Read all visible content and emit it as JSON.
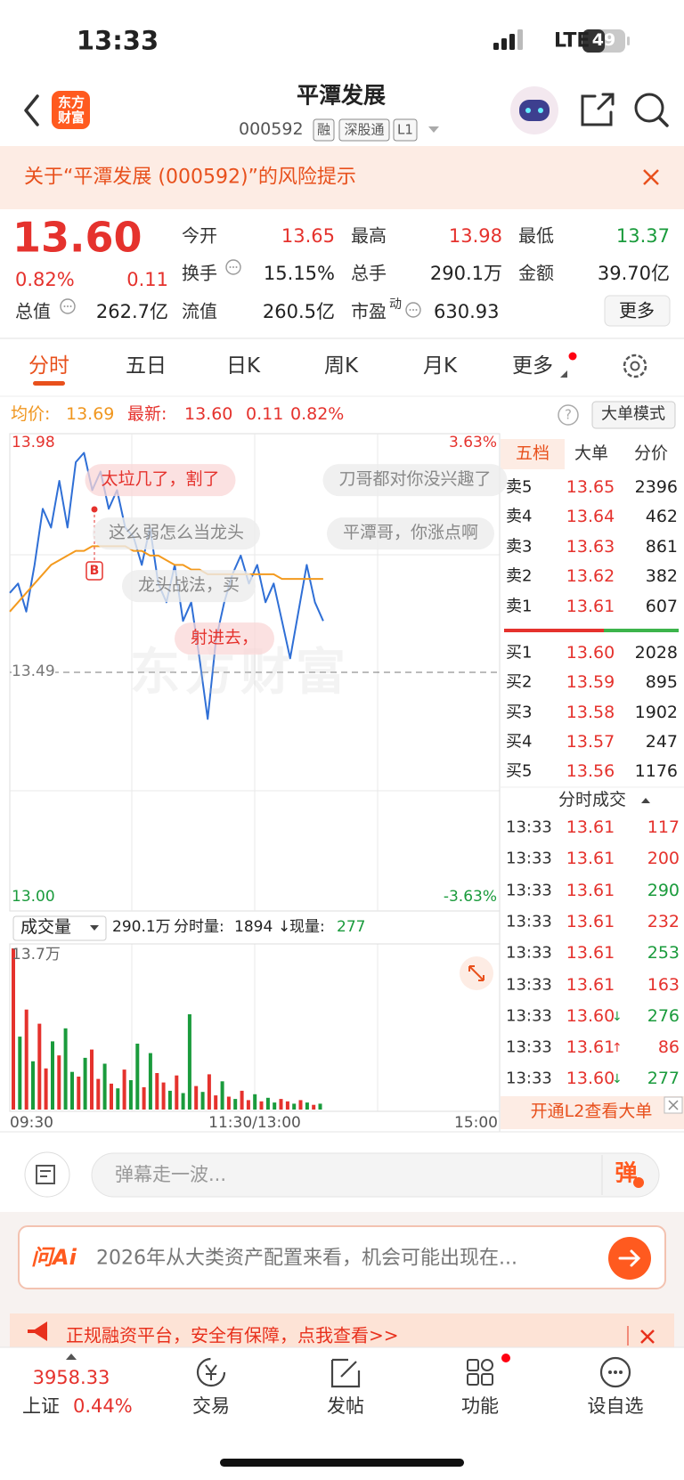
{
  "status_bar": {
    "time": "13:33",
    "network": "LTE",
    "battery": "49"
  },
  "header": {
    "logo": "东方财富",
    "name": "平潭发展",
    "code": "000592",
    "tags": [
      "融",
      "深股通",
      "L1"
    ]
  },
  "risk_notice": "关于“平潭发展 (000592)”的风险提示",
  "quote": {
    "price": "13.60",
    "change_pct": "0.82%",
    "change": "0.11",
    "fields": [
      {
        "label": "今开",
        "value": "13.65",
        "color": "#e5322d"
      },
      {
        "label": "最高",
        "value": "13.98",
        "color": "#e5322d"
      },
      {
        "label": "最低",
        "value": "13.37",
        "color": "#1a9b3c"
      },
      {
        "label": "换手",
        "value": "15.15%"
      },
      {
        "label": "总手",
        "value": "290.1万"
      },
      {
        "label": "金额",
        "value": "39.70亿"
      },
      {
        "label": "总值",
        "value": "262.7亿"
      },
      {
        "label": "流值",
        "value": "260.5亿"
      },
      {
        "label": "市盈",
        "sup": "动",
        "value": "630.93"
      }
    ],
    "more": "更多"
  },
  "tabs": [
    "分时",
    "五日",
    "日K",
    "周K",
    "月K",
    "更多"
  ],
  "info_bar": {
    "avg_label": "均价:",
    "avg": "13.69",
    "latest_label": "最新:",
    "latest": "13.60",
    "change": "0.11",
    "change_pct": "0.82%",
    "help": "?",
    "mode": "大单模式"
  },
  "chart_data": [
    {
      "type": "line",
      "ylim": [
        13.0,
        13.98
      ],
      "yticks": [
        {
          "value": 13.98,
          "label": "13.98"
        },
        {
          "value": 13.49,
          "label": "13.49"
        },
        {
          "value": 13,
          "label": "13.00"
        }
      ],
      "y2lim": [
        -3.63,
        3.63
      ],
      "y2ticks": [
        {
          "value": 3.63,
          "label": "3.63%"
        },
        {
          "value": -3.63,
          "label": "-3.63%"
        }
      ],
      "xticks": [
        "09:30",
        "11:30/13:00",
        "15:00"
      ],
      "series": [
        {
          "color": "#2f6fd6",
          "values": [
            13.66,
            13.68,
            13.62,
            13.72,
            13.84,
            13.8,
            13.9,
            13.8,
            13.94,
            13.96,
            13.88,
            13.92,
            13.84,
            13.88,
            13.8,
            13.78,
            13.72,
            13.8,
            13.68,
            13.64,
            13.72,
            13.6,
            13.64,
            13.52,
            13.39,
            13.56,
            13.64,
            13.7,
            13.74,
            13.68,
            13.72,
            13.64,
            13.68,
            13.6,
            13.52,
            13.62,
            13.72,
            13.64,
            13.6
          ]
        },
        {
          "color": "#f39a1e",
          "values": [
            13.62,
            13.64,
            13.66,
            13.68,
            13.7,
            13.72,
            13.73,
            13.74,
            13.75,
            13.75,
            13.76,
            13.76,
            13.76,
            13.76,
            13.76,
            13.75,
            13.75,
            13.74,
            13.74,
            13.73,
            13.72,
            13.72,
            13.71,
            13.71,
            13.7,
            13.7,
            13.7,
            13.7,
            13.7,
            13.7,
            13.7,
            13.7,
            13.7,
            13.69,
            13.69,
            13.69,
            13.69,
            13.69,
            13.69
          ]
        }
      ]
    },
    {
      "type": "bar",
      "selector": "成交量",
      "total": "290.1万",
      "minute_label": "分时量:",
      "minute": "1894",
      "arrow": "↓",
      "now_label": "现量:",
      "now": "277",
      "ylim": [
        0,
        13.7
      ],
      "yticks": [
        {
          "value": 13.7,
          "label": "13.7万"
        }
      ],
      "values": [
        13.7,
        6.2,
        8.5,
        4.1,
        7.3,
        3.5,
        5.8,
        4.6,
        6.9,
        3.2,
        2.8,
        4.4,
        5.1,
        2.6,
        3.9,
        2.2,
        1.8,
        3.4,
        2.5,
        5.6,
        1.9,
        4.8,
        3.1,
        2.3,
        1.6,
        2.9,
        1.4,
        8.1,
        2.0,
        1.5,
        3.0,
        1.2,
        2.4,
        1.1,
        0.9,
        1.6,
        0.8,
        1.3,
        0.7,
        1.0,
        0.6,
        0.9,
        0.7,
        0.5,
        0.8,
        0.6,
        0.4,
        0.5
      ],
      "colors": [
        "#e5322d",
        "#1a9b3c",
        "#e5322d",
        "#1a9b3c",
        "#e5322d",
        "#e5322d",
        "#1a9b3c",
        "#e5322d",
        "#1a9b3c",
        "#1a9b3c",
        "#e5322d",
        "#1a9b3c",
        "#e5322d",
        "#e5322d",
        "#1a9b3c",
        "#e5322d",
        "#1a9b3c",
        "#e5322d",
        "#1a9b3c",
        "#1a9b3c",
        "#e5322d",
        "#1a9b3c",
        "#e5322d",
        "#e5322d",
        "#1a9b3c",
        "#e5322d",
        "#1a9b3c",
        "#1a9b3c",
        "#e5322d",
        "#1a9b3c",
        "#e5322d",
        "#e5322d",
        "#1a9b3c",
        "#e5322d",
        "#1a9b3c",
        "#e5322d",
        "#e5322d",
        "#1a9b3c",
        "#e5322d",
        "#1a9b3c",
        "#1a9b3c",
        "#e5322d",
        "#e5322d",
        "#1a9b3c",
        "#e5322d",
        "#1a9b3c",
        "#e5322d",
        "#1a9b3c"
      ]
    }
  ],
  "danmaku": [
    "太垃几了，割了",
    "刀哥都对你没兴趣了",
    "这么弱怎么当龙头",
    "平潭哥，你涨点啊",
    "龙头战法，买",
    "射进去，"
  ],
  "buy_marker": "B",
  "watermark": "东方财富",
  "order_book": {
    "tabs": [
      "五档",
      "大单",
      "分价"
    ],
    "asks": [
      [
        "卖5",
        "13.65",
        "2396"
      ],
      [
        "卖4",
        "13.64",
        "462"
      ],
      [
        "卖3",
        "13.63",
        "861"
      ],
      [
        "卖2",
        "13.62",
        "382"
      ],
      [
        "卖1",
        "13.61",
        "607"
      ]
    ],
    "bids": [
      [
        "买1",
        "13.60",
        "2028"
      ],
      [
        "买2",
        "13.59",
        "895"
      ],
      [
        "买3",
        "13.58",
        "1902"
      ],
      [
        "买4",
        "13.57",
        "247"
      ],
      [
        "买5",
        "13.56",
        "1176"
      ]
    ]
  },
  "trades": {
    "title": "分时成交",
    "rows": [
      {
        "time": "13:33",
        "price": "13.61",
        "volume": "117",
        "color": "#e5322d"
      },
      {
        "time": "13:33",
        "price": "13.61",
        "volume": "200",
        "color": "#e5322d"
      },
      {
        "time": "13:33",
        "price": "13.61",
        "volume": "290",
        "color": "#1a9b3c"
      },
      {
        "time": "13:33",
        "price": "13.61",
        "volume": "232",
        "color": "#e5322d"
      },
      {
        "time": "13:33",
        "price": "13.61",
        "volume": "253",
        "color": "#1a9b3c"
      },
      {
        "time": "13:33",
        "price": "13.61",
        "volume": "163",
        "color": "#e5322d"
      },
      {
        "time": "13:33",
        "price": "13.60",
        "dir": "↓",
        "volume": "276",
        "color": "#1a9b3c"
      },
      {
        "time": "13:33",
        "price": "13.61",
        "dir": "↑",
        "volume": "86",
        "color": "#e5322d"
      },
      {
        "time": "13:33",
        "price": "13.60",
        "dir": "↓",
        "volume": "277",
        "color": "#1a9b3c"
      }
    ]
  },
  "l2_promo": "开通L2查看大单",
  "comment_input": {
    "placeholder": "弹幕走一波...",
    "button": "弹"
  },
  "ai_box": {
    "logo": "问Ai",
    "text": "2026年从大类资产配置来看，机会可能出现在..."
  },
  "ad": "正规融资平台，安全有保障，点我查看>>",
  "bottom_nav": {
    "index": {
      "value": "3958.33",
      "name": "上证",
      "change": "0.44%"
    },
    "items": [
      "交易",
      "发帖",
      "功能",
      "设自选"
    ]
  }
}
